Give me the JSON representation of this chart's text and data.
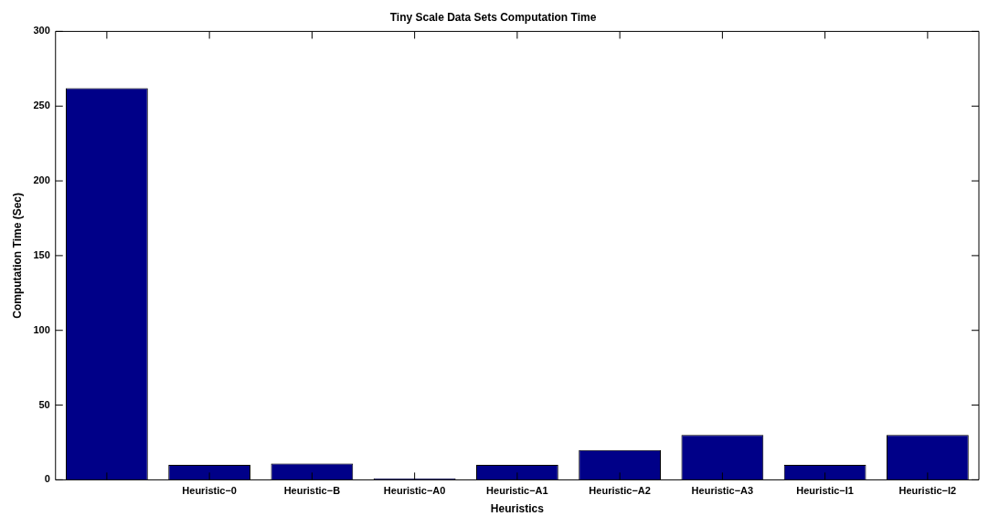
{
  "chart_data": {
    "type": "bar",
    "title": "Tiny Scale Data Sets Computation Time",
    "xlabel": "Heuristics",
    "ylabel": "Computation Time (Sec)",
    "categories": [
      null,
      "Heuristic−0",
      "Heuristic−B",
      "Heuristic−A0",
      "Heuristic−A1",
      "Heuristic−A2",
      "Heuristic−A3",
      "Heuristic−I1",
      "Heuristic−I2"
    ],
    "values": [
      262,
      10,
      11,
      1,
      10,
      20,
      30,
      10,
      30
    ],
    "color": "#000088",
    "ylim": [
      0,
      300
    ],
    "yticks": [
      0,
      50,
      100,
      150,
      200,
      250,
      300
    ],
    "grid": false,
    "legend": false
  }
}
